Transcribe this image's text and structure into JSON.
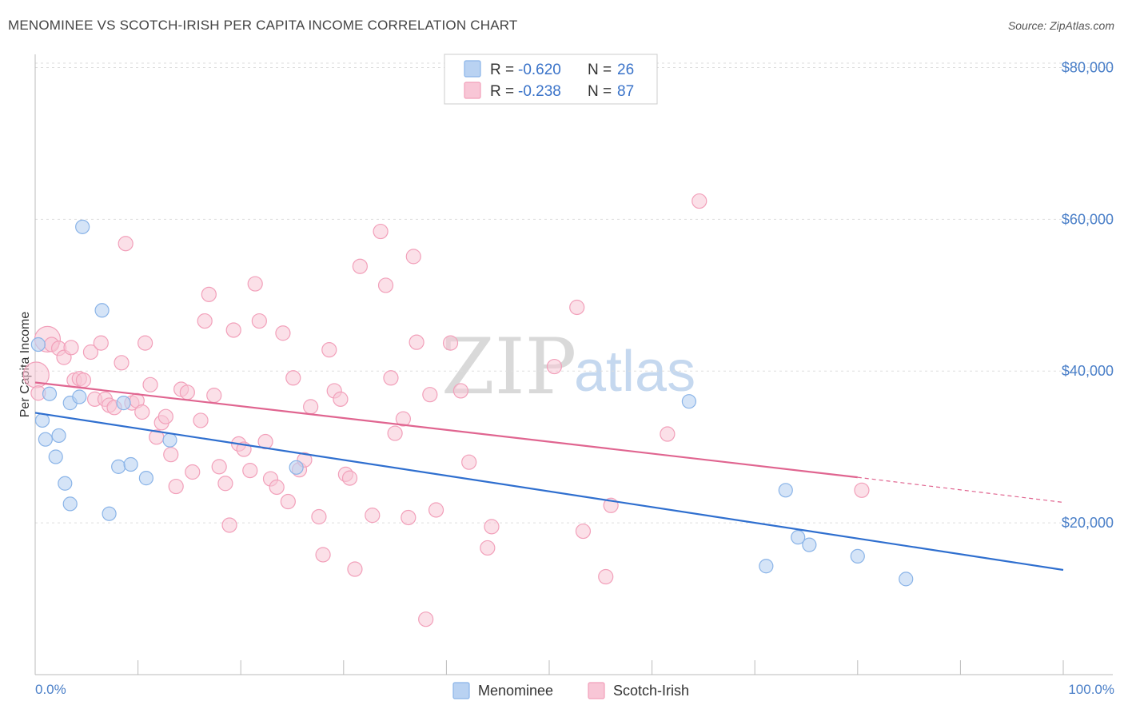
{
  "title": "MENOMINEE VS SCOTCH-IRISH PER CAPITA INCOME CORRELATION CHART",
  "source": "Source: ZipAtlas.com",
  "watermark": {
    "zip": "ZIP",
    "atlas": "atlas"
  },
  "colors": {
    "menominee": "#8ab4e8",
    "menominee_fill": "#b9d2f2",
    "menominee_line": "#2f6fcf",
    "scotch": "#f2a0ba",
    "scotch_fill": "#f8c6d6",
    "scotch_line": "#e06590",
    "grid": "#dddddd",
    "tick_label": "#4a7fc8"
  },
  "legend": {
    "rows": [
      {
        "r_label": "R =",
        "r_value": "-0.620",
        "n_label": "N =",
        "n_value": "26"
      },
      {
        "r_label": "R =",
        "r_value": "-0.238",
        "n_label": "N =",
        "n_value": "87"
      }
    ]
  },
  "chart_data": {
    "type": "scatter",
    "title": "MENOMINEE VS SCOTCH-IRISH PER CAPITA INCOME CORRELATION CHART",
    "xlabel": "",
    "ylabel": "Per Capita Income",
    "xlim": [
      0,
      100
    ],
    "ylim": [
      0,
      85000
    ],
    "x_tick_labels": [
      "0.0%",
      "100.0%"
    ],
    "y_ticks": [
      20000,
      40000,
      60000,
      80000
    ],
    "y_tick_labels": [
      "$20,000",
      "$40,000",
      "$60,000",
      "$80,000"
    ],
    "series": [
      {
        "name": "Menominee",
        "r": -0.62,
        "n": 26,
        "trend": {
          "x": [
            0,
            100
          ],
          "y": [
            34500,
            13800
          ]
        },
        "points": [
          [
            0.3,
            43500
          ],
          [
            0.7,
            33500
          ],
          [
            1.0,
            31000
          ],
          [
            1.4,
            37000
          ],
          [
            2.0,
            28700
          ],
          [
            2.3,
            31500
          ],
          [
            2.9,
            25200
          ],
          [
            3.4,
            22500
          ],
          [
            3.4,
            35800
          ],
          [
            4.3,
            36600
          ],
          [
            4.6,
            59000
          ],
          [
            6.5,
            48000
          ],
          [
            7.2,
            21200
          ],
          [
            8.1,
            27400
          ],
          [
            8.6,
            35800
          ],
          [
            9.3,
            27700
          ],
          [
            10.8,
            25900
          ],
          [
            13.1,
            30900
          ],
          [
            25.4,
            27300
          ],
          [
            63.6,
            36000
          ],
          [
            71.1,
            14300
          ],
          [
            73.0,
            24300
          ],
          [
            74.2,
            18100
          ],
          [
            75.3,
            17100
          ],
          [
            80.0,
            15600
          ],
          [
            84.7,
            12600
          ]
        ]
      },
      {
        "name": "Scotch-Irish",
        "r": -0.238,
        "n": 87,
        "trend": {
          "x": [
            0,
            80
          ],
          "y": [
            38500,
            26000
          ]
        },
        "trend_dashed": {
          "x": [
            80,
            100
          ],
          "y": [
            26000,
            22700
          ]
        },
        "points": [
          [
            0.1,
            39500
          ],
          [
            1.2,
            44200
          ],
          [
            1.6,
            43500
          ],
          [
            2.3,
            43000
          ],
          [
            2.8,
            41800
          ],
          [
            3.5,
            43100
          ],
          [
            3.8,
            38800
          ],
          [
            4.3,
            39000
          ],
          [
            4.7,
            38800
          ],
          [
            5.4,
            42500
          ],
          [
            5.8,
            36300
          ],
          [
            6.4,
            43700
          ],
          [
            6.8,
            36300
          ],
          [
            7.2,
            35500
          ],
          [
            7.7,
            35200
          ],
          [
            8.4,
            41100
          ],
          [
            8.8,
            56800
          ],
          [
            9.4,
            35800
          ],
          [
            9.9,
            36100
          ],
          [
            10.4,
            34600
          ],
          [
            10.7,
            43700
          ],
          [
            11.2,
            38200
          ],
          [
            11.8,
            31300
          ],
          [
            12.3,
            33200
          ],
          [
            12.7,
            34000
          ],
          [
            13.2,
            29000
          ],
          [
            13.7,
            24800
          ],
          [
            14.2,
            37600
          ],
          [
            14.8,
            37200
          ],
          [
            15.3,
            26700
          ],
          [
            16.1,
            33500
          ],
          [
            16.5,
            46600
          ],
          [
            16.9,
            50100
          ],
          [
            17.4,
            36800
          ],
          [
            17.9,
            27400
          ],
          [
            18.5,
            25200
          ],
          [
            18.9,
            19700
          ],
          [
            19.3,
            45400
          ],
          [
            19.8,
            30400
          ],
          [
            20.3,
            29700
          ],
          [
            20.9,
            26900
          ],
          [
            21.4,
            51500
          ],
          [
            21.8,
            46600
          ],
          [
            22.4,
            30700
          ],
          [
            22.9,
            25800
          ],
          [
            23.5,
            24700
          ],
          [
            24.1,
            45000
          ],
          [
            24.6,
            22800
          ],
          [
            25.1,
            39100
          ],
          [
            25.7,
            27000
          ],
          [
            26.2,
            28300
          ],
          [
            26.8,
            35300
          ],
          [
            27.6,
            20800
          ],
          [
            28.0,
            15800
          ],
          [
            28.6,
            42800
          ],
          [
            29.1,
            37400
          ],
          [
            29.7,
            36300
          ],
          [
            30.2,
            26400
          ],
          [
            30.6,
            25900
          ],
          [
            31.1,
            13900
          ],
          [
            31.6,
            53800
          ],
          [
            32.8,
            21000
          ],
          [
            33.6,
            58400
          ],
          [
            34.1,
            51300
          ],
          [
            34.6,
            39100
          ],
          [
            35.0,
            31800
          ],
          [
            35.8,
            33700
          ],
          [
            36.3,
            20700
          ],
          [
            36.8,
            55100
          ],
          [
            37.1,
            43800
          ],
          [
            38.0,
            7300
          ],
          [
            38.4,
            36900
          ],
          [
            39.0,
            21700
          ],
          [
            40.4,
            43700
          ],
          [
            41.4,
            37400
          ],
          [
            42.2,
            28000
          ],
          [
            44.0,
            16700
          ],
          [
            44.4,
            19500
          ],
          [
            50.5,
            40600
          ],
          [
            52.7,
            48400
          ],
          [
            53.3,
            18900
          ],
          [
            55.5,
            12900
          ],
          [
            56.0,
            22300
          ],
          [
            61.5,
            31700
          ],
          [
            64.6,
            62400
          ],
          [
            80.4,
            24300
          ],
          [
            0.3,
            37100
          ]
        ]
      }
    ]
  },
  "bottom_legend": [
    "Menominee",
    "Scotch-Irish"
  ]
}
